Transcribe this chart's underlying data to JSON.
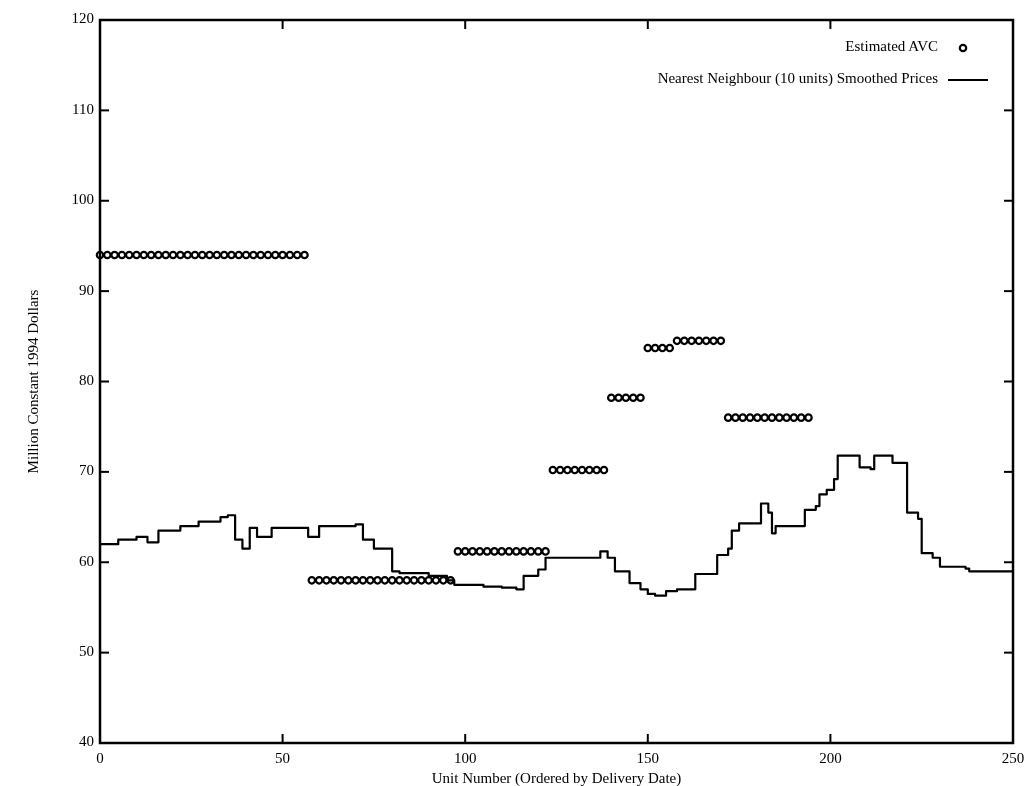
{
  "chart_data": {
    "type": "scatter",
    "xlabel": "Unit Number (Ordered by Delivery Date)",
    "ylabel": "Million Constant 1994 Dollars",
    "xlim": [
      0,
      250
    ],
    "ylim": [
      40,
      120
    ],
    "xticks": [
      0,
      50,
      100,
      150,
      200,
      250
    ],
    "yticks": [
      40,
      50,
      60,
      70,
      80,
      90,
      100,
      110,
      120
    ],
    "grid": false,
    "legend": "top right",
    "series": [
      {
        "name": "Estimated AVC",
        "color": "#000000",
        "marker": "circle",
        "x": [
          0,
          2,
          4,
          6,
          8,
          10,
          12,
          14,
          16,
          18,
          20,
          22,
          24,
          26,
          28,
          30,
          32,
          34,
          36,
          38,
          40,
          42,
          44,
          46,
          48,
          50,
          52,
          54,
          56,
          58,
          60,
          62,
          64,
          66,
          68,
          70,
          72,
          74,
          76,
          78,
          80,
          82,
          84,
          86,
          88,
          90,
          92,
          94,
          96,
          98,
          100,
          102,
          104,
          106,
          108,
          110,
          112,
          114,
          116,
          118,
          120,
          122,
          124,
          126,
          128,
          130,
          132,
          134,
          136,
          138,
          140,
          142,
          144,
          146,
          148,
          150,
          152,
          154,
          156,
          158,
          160,
          162,
          164,
          166,
          168,
          170,
          172,
          174,
          176,
          178,
          180,
          182,
          184,
          186,
          188,
          190,
          192,
          194
        ],
        "values": [
          94,
          94,
          94,
          94,
          94,
          94,
          94,
          94,
          94,
          94,
          94,
          94,
          94,
          94,
          94,
          94,
          94,
          94,
          94,
          94,
          94,
          94,
          94,
          94,
          94,
          94,
          94,
          94,
          94,
          58,
          58,
          58,
          58,
          58,
          58,
          58,
          58,
          58,
          58,
          58,
          58,
          58,
          58,
          58,
          58,
          58,
          58,
          58,
          58,
          61.2,
          61.2,
          61.2,
          61.2,
          61.2,
          61.2,
          61.2,
          61.2,
          61.2,
          61.2,
          61.2,
          61.2,
          61.2,
          70.2,
          70.2,
          70.2,
          70.2,
          70.2,
          70.2,
          70.2,
          70.2,
          78.2,
          78.2,
          78.2,
          78.2,
          78.2,
          83.7,
          83.7,
          83.7,
          83.7,
          84.5,
          84.5,
          84.5,
          84.5,
          84.5,
          84.5,
          84.5,
          76,
          76,
          76,
          76,
          76,
          76,
          76,
          76,
          76,
          76,
          76,
          76
        ]
      },
      {
        "name": "Nearest Neighbour (10 units) Smoothed Prices",
        "type": "step",
        "color": "#000000",
        "line_style": "solid",
        "x": [
          0,
          5,
          10,
          13,
          16,
          22,
          27,
          33,
          35,
          37,
          39,
          41,
          43,
          47,
          55,
          57,
          60,
          70,
          72,
          75,
          78,
          80,
          82,
          90,
          95,
          97,
          100,
          105,
          110,
          114,
          116,
          120,
          122,
          135,
          137,
          139,
          141,
          145,
          148,
          150,
          152,
          155,
          158,
          160,
          163,
          167,
          169,
          172,
          173,
          175,
          179,
          181,
          183,
          184,
          185,
          191,
          193,
          196,
          197,
          199,
          201,
          202,
          206,
          208,
          211,
          212,
          216,
          217,
          220,
          221,
          224,
          225,
          228,
          230,
          237,
          238,
          250
        ],
        "values": [
          62,
          62.5,
          62.8,
          62.2,
          63.5,
          64,
          64.5,
          65,
          65.2,
          62.5,
          61.5,
          63.8,
          62.8,
          63.8,
          63.8,
          62.8,
          64,
          64.2,
          62.5,
          61.5,
          61.5,
          59,
          58.8,
          58.5,
          58,
          57.5,
          57.5,
          57.3,
          57.2,
          57,
          58.5,
          59.2,
          60.5,
          60.5,
          61.2,
          60.5,
          59,
          57.7,
          57,
          56.5,
          56.3,
          56.8,
          57,
          57,
          58.7,
          58.7,
          60.8,
          61.5,
          63.5,
          64.3,
          64.3,
          66.5,
          65.5,
          63.2,
          64,
          64,
          65.8,
          66.2,
          67.5,
          68,
          69.2,
          71.8,
          71.8,
          70.5,
          70.3,
          71.8,
          71.8,
          71,
          71,
          65.5,
          64.8,
          61,
          60.5,
          59.5,
          59.3,
          59,
          59
        ]
      }
    ]
  }
}
